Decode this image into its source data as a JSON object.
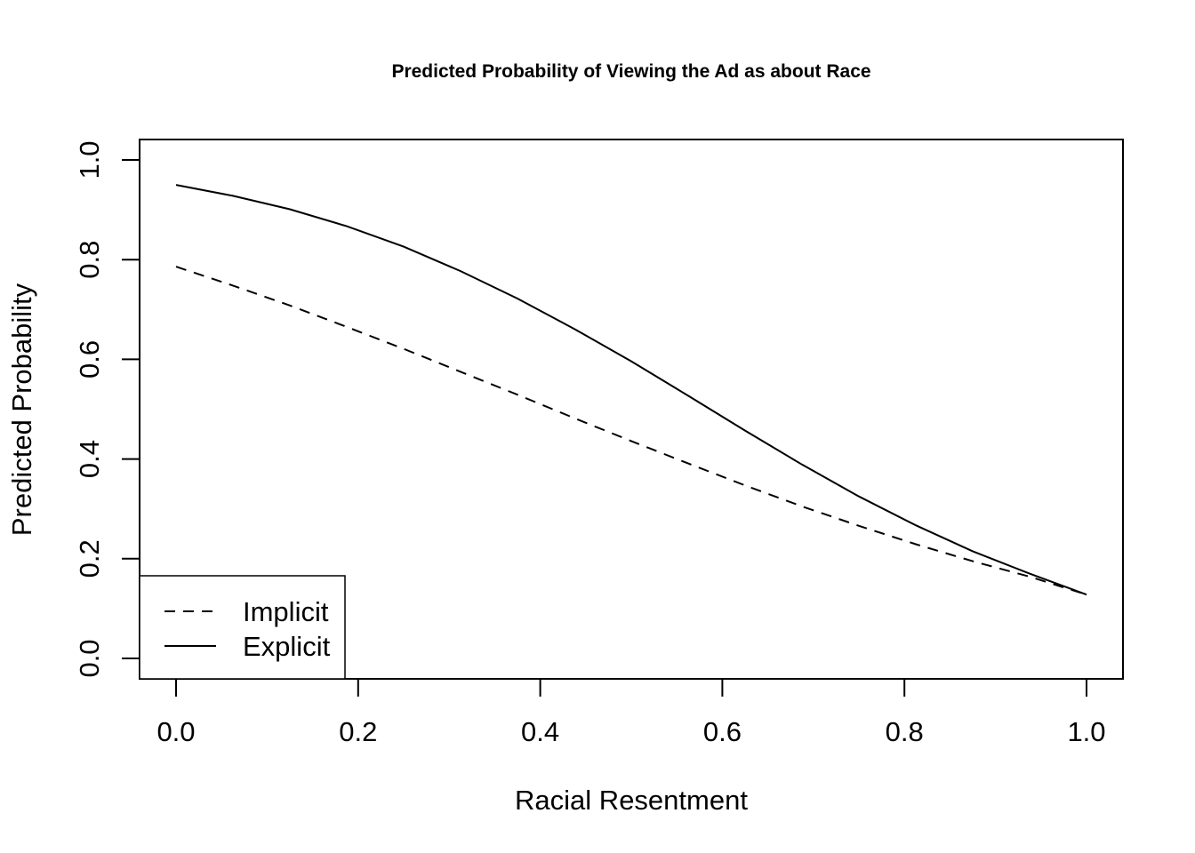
{
  "chart_data": {
    "type": "line",
    "title": "Predicted Probability of Viewing the Ad as about Race",
    "xlabel": "Racial Resentment",
    "ylabel": "Predicted Probability",
    "xlim": [
      0,
      1
    ],
    "ylim": [
      0,
      1
    ],
    "x_ticks": [
      "0.0",
      "0.2",
      "0.4",
      "0.6",
      "0.8",
      "1.0"
    ],
    "y_ticks": [
      "0.0",
      "0.2",
      "0.4",
      "0.6",
      "0.8",
      "1.0"
    ],
    "grid": false,
    "legend_position": "bottom-left",
    "x": [
      0,
      0.0625,
      0.125,
      0.1875,
      0.25,
      0.3125,
      0.375,
      0.4375,
      0.5,
      0.5625,
      0.625,
      0.6875,
      0.75,
      0.8125,
      0.875,
      0.9375,
      1.0
    ],
    "series": [
      {
        "name": "Implicit",
        "line_style": "dashed",
        "values": [
          0.786,
          0.748,
          0.708,
          0.665,
          0.621,
          0.575,
          0.529,
          0.482,
          0.436,
          0.391,
          0.347,
          0.305,
          0.266,
          0.229,
          0.195,
          0.164,
          0.128
        ]
      },
      {
        "name": "Explicit",
        "line_style": "solid",
        "values": [
          0.95,
          0.928,
          0.901,
          0.867,
          0.826,
          0.777,
          0.722,
          0.661,
          0.596,
          0.527,
          0.457,
          0.389,
          0.325,
          0.267,
          0.215,
          0.17,
          0.128
        ]
      }
    ],
    "color": "#000000"
  }
}
